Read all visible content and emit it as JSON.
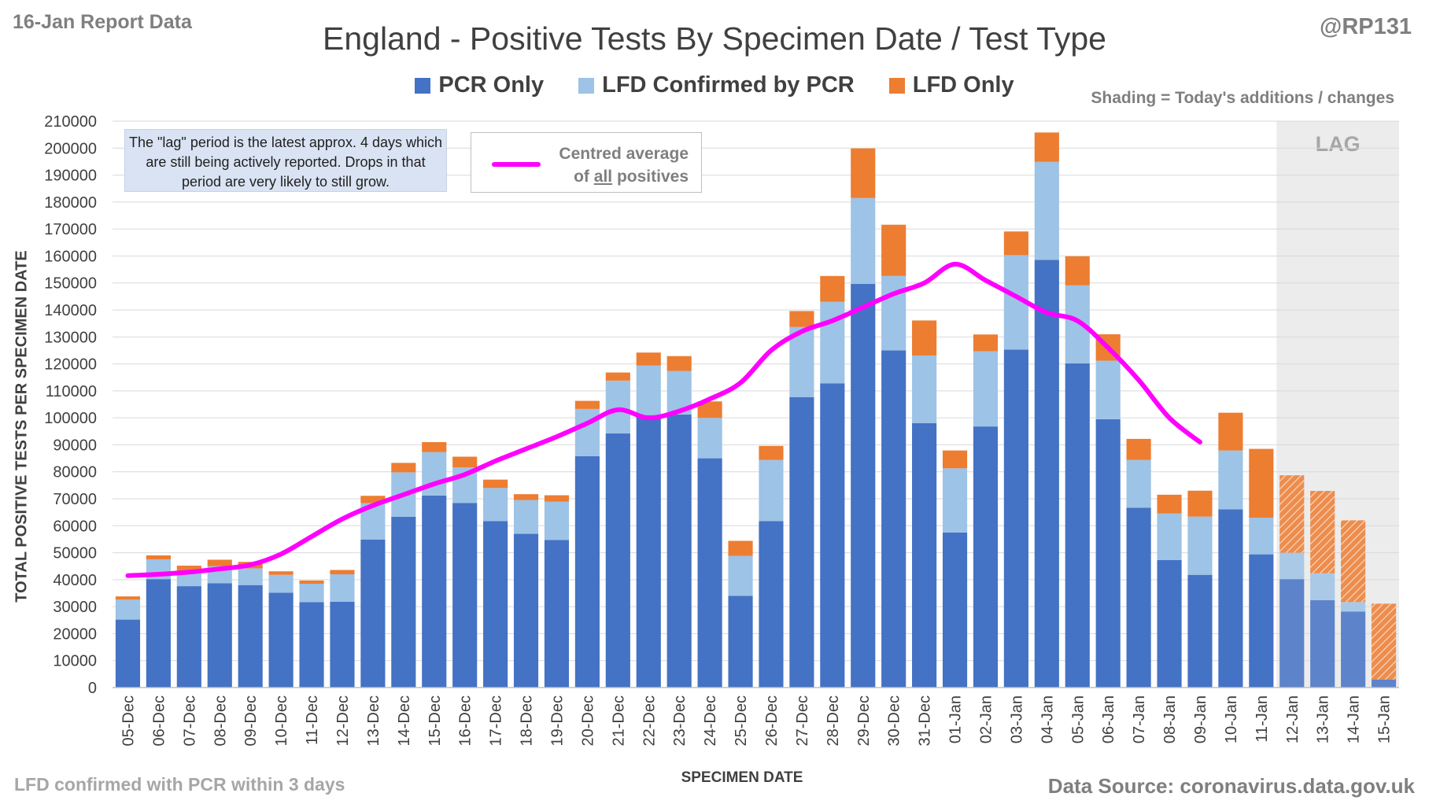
{
  "header": {
    "report_label": "16-Jan Report Data",
    "author": "@RP131",
    "title": "England - Positive Tests By Specimen Date / Test Type"
  },
  "legend": {
    "items": [
      {
        "label": "PCR Only",
        "color": "#4472c4"
      },
      {
        "label": "LFD Confirmed by PCR",
        "color": "#9dc3e6"
      },
      {
        "label": "LFD Only",
        "color": "#ed7d31"
      }
    ],
    "shading_note": "Shading = Today's additions / changes"
  },
  "annotations": {
    "lag_note": "The \"lag\" period is the latest approx. 4 days which are still being actively reported. Drops in that period are very likely to still grow.",
    "lag_label": "LAG",
    "average_line_1": "Centred average",
    "average_line_2_prefix": "of ",
    "average_line_2_underlined": "all",
    "average_line_2_suffix": " positives",
    "average_color": "#ff00ff"
  },
  "footer": {
    "left_note": "LFD confirmed with PCR within 3 days",
    "source": "Data Source: coronavirus.data.gov.uk"
  },
  "chart_data": {
    "type": "bar",
    "stacked": true,
    "title": "England - Positive Tests By Specimen Date / Test Type",
    "xlabel": "SPECIMEN DATE",
    "ylabel": "TOTAL POSITIVE TESTS PER SPECIMEN DATE",
    "ylim": [
      0,
      210000
    ],
    "yticks": [
      0,
      10000,
      20000,
      30000,
      40000,
      50000,
      60000,
      70000,
      80000,
      90000,
      100000,
      110000,
      120000,
      130000,
      140000,
      150000,
      160000,
      170000,
      180000,
      190000,
      200000,
      210000
    ],
    "grid": true,
    "legend_position": "top",
    "categories": [
      "05-Dec",
      "06-Dec",
      "07-Dec",
      "08-Dec",
      "09-Dec",
      "10-Dec",
      "11-Dec",
      "12-Dec",
      "13-Dec",
      "14-Dec",
      "15-Dec",
      "16-Dec",
      "17-Dec",
      "18-Dec",
      "19-Dec",
      "20-Dec",
      "21-Dec",
      "22-Dec",
      "23-Dec",
      "24-Dec",
      "25-Dec",
      "26-Dec",
      "27-Dec",
      "28-Dec",
      "29-Dec",
      "30-Dec",
      "31-Dec",
      "01-Jan",
      "02-Jan",
      "03-Jan",
      "04-Jan",
      "05-Jan",
      "06-Jan",
      "07-Jan",
      "08-Jan",
      "09-Jan",
      "10-Jan",
      "11-Jan",
      "12-Jan",
      "13-Jan",
      "14-Jan",
      "15-Jan"
    ],
    "series": [
      {
        "name": "PCR Only",
        "color": "#4472c4",
        "values": [
          25200,
          40200,
          37600,
          38700,
          38000,
          35200,
          31700,
          31800,
          54900,
          63300,
          71200,
          68400,
          61700,
          57000,
          54700,
          85800,
          94200,
          101000,
          101200,
          85000,
          34000,
          61700,
          107700,
          112800,
          149700,
          125000,
          98000,
          57500,
          96800,
          125300,
          158600,
          120200,
          99500,
          66700,
          47300,
          41800,
          66100,
          49400,
          40200,
          32400,
          28200,
          3000
        ]
      },
      {
        "name": "LFD Confirmed by PCR",
        "color": "#9dc3e6",
        "values": [
          7400,
          7300,
          5600,
          6300,
          6200,
          6600,
          6800,
          10200,
          13500,
          16500,
          16100,
          13200,
          12300,
          12500,
          14200,
          17500,
          19600,
          18400,
          16200,
          15000,
          14800,
          22700,
          26000,
          30200,
          31800,
          27600,
          25100,
          23800,
          27900,
          35000,
          36300,
          28900,
          21700,
          17700,
          17300,
          21600,
          21800,
          13600,
          9800,
          10000,
          3500,
          0
        ]
      },
      {
        "name": "LFD Only",
        "color": "#ed7d31",
        "values": [
          1200,
          1500,
          2000,
          2400,
          2400,
          1300,
          1200,
          1600,
          2700,
          3500,
          3700,
          4000,
          3100,
          2200,
          2400,
          3000,
          3000,
          4800,
          5500,
          6100,
          5600,
          5200,
          5900,
          9600,
          18400,
          19000,
          13000,
          6600,
          6200,
          8800,
          10900,
          10800,
          9800,
          7800,
          6900,
          9600,
          14000,
          25500,
          28700,
          30500,
          30300,
          28100
        ]
      }
    ],
    "centred_average": {
      "name": "Centred average of all positives",
      "x_start": "05-Dec",
      "x_end": "09-Jan",
      "values": [
        41500,
        42000,
        42800,
        44000,
        45500,
        49500,
        56000,
        62500,
        67500,
        71500,
        75500,
        79000,
        84000,
        88500,
        93000,
        98000,
        103000,
        100000,
        102500,
        107000,
        113000,
        125000,
        132000,
        136000,
        141000,
        146000,
        150000,
        157000,
        151000,
        145000,
        139000,
        136000,
        126000,
        114000,
        100000,
        91000
      ]
    },
    "lag_period": [
      "12-Jan",
      "15-Jan"
    ]
  }
}
